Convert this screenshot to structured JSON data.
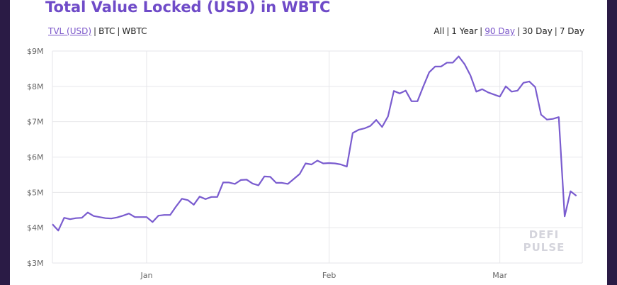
{
  "header": {
    "title": "Total Value Locked (USD) in WBTC"
  },
  "metric_tabs": [
    {
      "label": "TVL (USD)",
      "active": true
    },
    {
      "label": "BTC",
      "active": false
    },
    {
      "label": "WBTC",
      "active": false
    }
  ],
  "range_tabs": [
    {
      "label": "All",
      "active": false
    },
    {
      "label": "1 Year",
      "active": false
    },
    {
      "label": "90 Day",
      "active": true
    },
    {
      "label": "30 Day",
      "active": false
    },
    {
      "label": "7 Day",
      "active": false
    }
  ],
  "watermark": {
    "line1": "DEFI",
    "line2": "PULSE"
  },
  "colors": {
    "line": "#7a5ccf",
    "accent": "#6f4bc8",
    "grid": "#e6e6ea",
    "background": "#2a1b45"
  },
  "chart_data": {
    "type": "line",
    "title": "Total Value Locked (USD) in WBTC",
    "xlabel": "",
    "ylabel": "",
    "ylim": [
      3,
      9
    ],
    "y_unit": "$M",
    "yticks": [
      3,
      4,
      5,
      6,
      7,
      8,
      9
    ],
    "ytick_labels": [
      "$3M",
      "$4M",
      "$5M",
      "$6M",
      "$7M",
      "$8M",
      "$9M"
    ],
    "xlim": [
      "2019-12-16",
      "2020-03-15"
    ],
    "xticks": [
      "2020-01-01",
      "2020-02-01",
      "2020-03-01"
    ],
    "xtick_labels": [
      "Jan",
      "Feb",
      "Mar"
    ],
    "grid": true,
    "series": [
      {
        "x": [
          "2019-12-16",
          "2019-12-17",
          "2019-12-18",
          "2019-12-19",
          "2019-12-20",
          "2019-12-21",
          "2019-12-22",
          "2019-12-23",
          "2019-12-24",
          "2019-12-25",
          "2019-12-26",
          "2019-12-27",
          "2019-12-28",
          "2019-12-29",
          "2019-12-30",
          "2019-12-31",
          "2020-01-01",
          "2020-01-02",
          "2020-01-03",
          "2020-01-04",
          "2020-01-05",
          "2020-01-06",
          "2020-01-07",
          "2020-01-08",
          "2020-01-09",
          "2020-01-10",
          "2020-01-11",
          "2020-01-12",
          "2020-01-13",
          "2020-01-14",
          "2020-01-15",
          "2020-01-16",
          "2020-01-17",
          "2020-01-18",
          "2020-01-19",
          "2020-01-20",
          "2020-01-21",
          "2020-01-22",
          "2020-01-23",
          "2020-01-24",
          "2020-01-25",
          "2020-01-26",
          "2020-01-27",
          "2020-01-28",
          "2020-01-29",
          "2020-01-30",
          "2020-01-31",
          "2020-02-01",
          "2020-02-02",
          "2020-02-03",
          "2020-02-04",
          "2020-02-05",
          "2020-02-06",
          "2020-02-07",
          "2020-02-08",
          "2020-02-09",
          "2020-02-10",
          "2020-02-11",
          "2020-02-12",
          "2020-02-13",
          "2020-02-14",
          "2020-02-15",
          "2020-02-16",
          "2020-02-17",
          "2020-02-18",
          "2020-02-19",
          "2020-02-20",
          "2020-02-21",
          "2020-02-22",
          "2020-02-23",
          "2020-02-24",
          "2020-02-25",
          "2020-02-26",
          "2020-02-27",
          "2020-02-28",
          "2020-02-29",
          "2020-03-01",
          "2020-03-02",
          "2020-03-03",
          "2020-03-04",
          "2020-03-05",
          "2020-03-06",
          "2020-03-07",
          "2020-03-08",
          "2020-03-09",
          "2020-03-10",
          "2020-03-11",
          "2020-03-12",
          "2020-03-13",
          "2020-03-14"
        ],
        "values": [
          4.1,
          3.92,
          4.28,
          4.24,
          4.27,
          4.28,
          4.43,
          4.33,
          4.3,
          4.27,
          4.26,
          4.29,
          4.34,
          4.4,
          4.3,
          4.3,
          4.3,
          4.16,
          4.34,
          4.36,
          4.36,
          4.6,
          4.82,
          4.78,
          4.65,
          4.88,
          4.81,
          4.87,
          4.87,
          5.28,
          5.28,
          5.24,
          5.35,
          5.36,
          5.25,
          5.2,
          5.45,
          5.44,
          5.27,
          5.27,
          5.24,
          5.38,
          5.52,
          5.82,
          5.79,
          5.9,
          5.82,
          5.83,
          5.82,
          5.79,
          5.73,
          6.68,
          6.77,
          6.81,
          6.88,
          7.05,
          6.85,
          7.15,
          7.87,
          7.8,
          7.88,
          7.58,
          7.58,
          8.0,
          8.4,
          8.56,
          8.56,
          8.67,
          8.67,
          8.85,
          8.63,
          8.31,
          7.85,
          7.92,
          7.83,
          7.77,
          7.71,
          8.0,
          7.85,
          7.88,
          8.1,
          8.14,
          7.98,
          7.2,
          7.06,
          7.08,
          7.13,
          4.32,
          5.03,
          4.9
        ]
      }
    ]
  }
}
